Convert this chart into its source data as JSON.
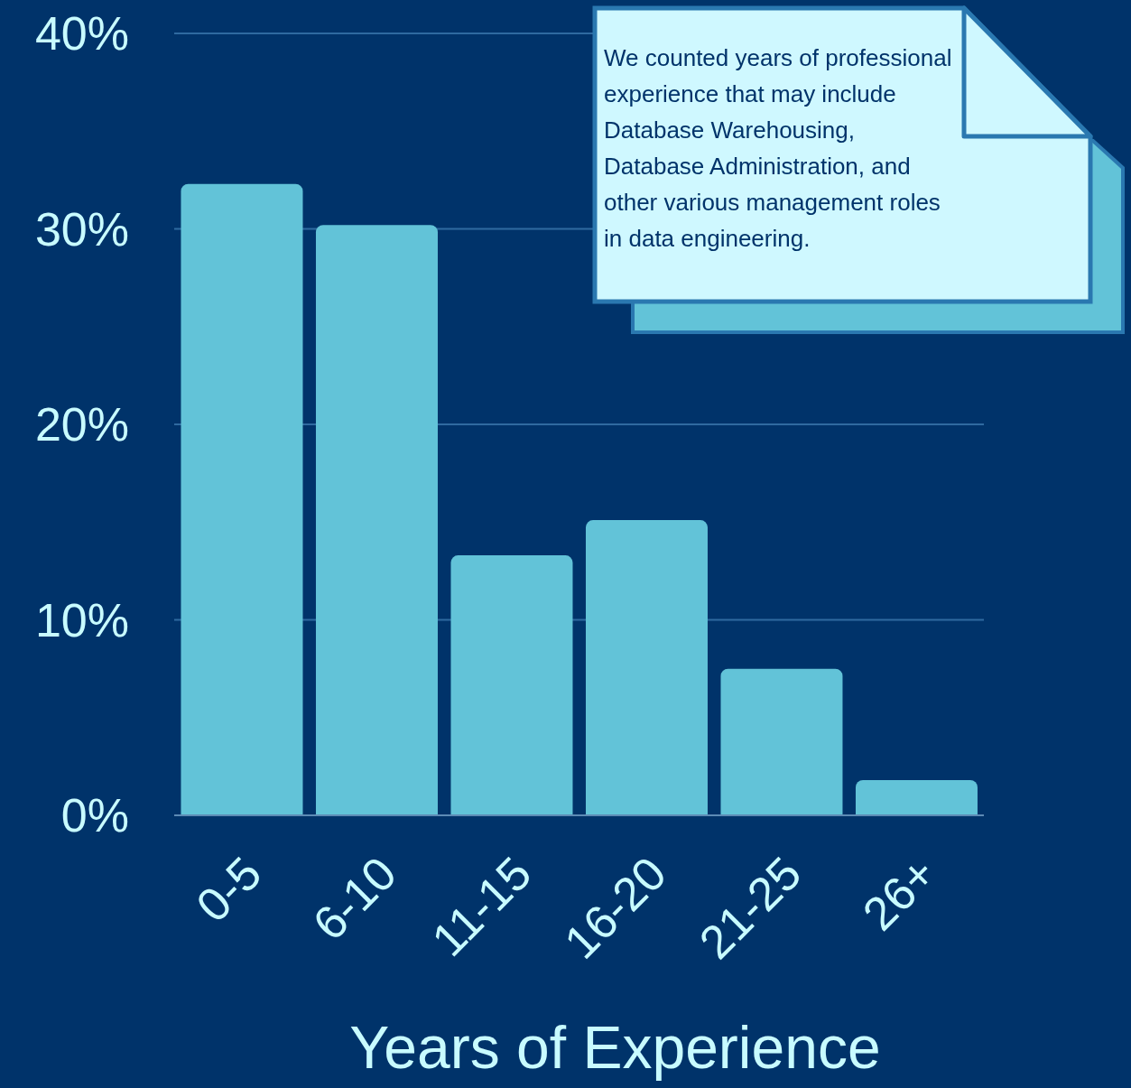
{
  "chart_data": {
    "type": "bar",
    "xlabel": "Years of Experience",
    "categories": [
      "0-5",
      "6-10",
      "11-15",
      "16-20",
      "21-25",
      "26+"
    ],
    "series": [
      {
        "color": "#62c3d8",
        "values": [
          32.3,
          30.2,
          13.3,
          15.1,
          7.5,
          1.8
        ]
      }
    ],
    "ylim": [
      0,
      40
    ],
    "yticks": [
      {
        "value": 0,
        "label": "0%"
      },
      {
        "value": 10,
        "label": "10%"
      },
      {
        "value": 20,
        "label": "20%"
      },
      {
        "value": 30,
        "label": "30%"
      },
      {
        "value": 40,
        "label": "40%"
      }
    ],
    "grid": "y",
    "legend": false,
    "annotations": [
      "We counted years of professional experience that may include Database Warehousing, Database Administration, and other various management roles in data engineering."
    ]
  }
}
